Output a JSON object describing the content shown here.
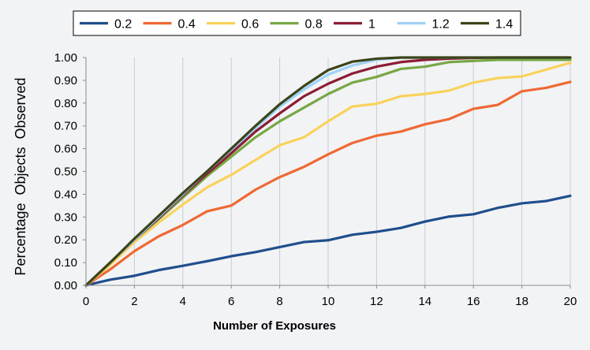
{
  "chart_data": {
    "type": "line",
    "title": "",
    "xlabel": "Number of Exposures",
    "ylabel": "Percentage  Objects  Observed",
    "xlim": [
      0,
      20
    ],
    "ylim": [
      0.0,
      1.0
    ],
    "x_ticks": [
      "0",
      "2",
      "4",
      "6",
      "8",
      "10",
      "12",
      "14",
      "16",
      "18",
      "20"
    ],
    "y_ticks": [
      "0.00",
      "0.10",
      "0.20",
      "0.30",
      "0.40",
      "0.50",
      "0.60",
      "0.70",
      "0.80",
      "0.90",
      "1.00"
    ],
    "grid": "vertical",
    "legend_position": "top",
    "x": [
      0,
      1,
      2,
      3,
      4,
      5,
      6,
      7,
      8,
      9,
      10,
      11,
      12,
      13,
      14,
      15,
      16,
      17,
      18,
      19,
      20
    ],
    "series": [
      {
        "name": "0.2",
        "color": "#1f4e8c",
        "values": [
          0.0,
          0.025,
          0.042,
          0.067,
          0.086,
          0.106,
          0.128,
          0.146,
          0.168,
          0.19,
          0.198,
          0.222,
          0.235,
          0.252,
          0.28,
          0.302,
          0.312,
          0.34,
          0.36,
          0.37,
          0.393
        ]
      },
      {
        "name": "0.4",
        "color": "#ef6934",
        "values": [
          0.0,
          0.07,
          0.15,
          0.215,
          0.265,
          0.325,
          0.35,
          0.42,
          0.475,
          0.52,
          0.575,
          0.625,
          0.657,
          0.675,
          0.707,
          0.73,
          0.775,
          0.792,
          0.852,
          0.867,
          0.893
        ]
      },
      {
        "name": "0.6",
        "color": "#f9d25c",
        "values": [
          0.0,
          0.09,
          0.19,
          0.275,
          0.355,
          0.43,
          0.485,
          0.55,
          0.615,
          0.65,
          0.72,
          0.785,
          0.797,
          0.83,
          0.84,
          0.855,
          0.89,
          0.91,
          0.917,
          0.947,
          0.977
        ]
      },
      {
        "name": "0.8",
        "color": "#77a744",
        "values": [
          0.0,
          0.1,
          0.2,
          0.29,
          0.385,
          0.48,
          0.565,
          0.65,
          0.72,
          0.78,
          0.84,
          0.89,
          0.915,
          0.95,
          0.96,
          0.98,
          0.985,
          0.99,
          0.99,
          0.99,
          0.99
        ]
      },
      {
        "name": "1",
        "color": "#8c1c35",
        "values": [
          0.0,
          0.1,
          0.2,
          0.295,
          0.395,
          0.49,
          0.58,
          0.675,
          0.755,
          0.83,
          0.885,
          0.93,
          0.96,
          0.98,
          0.99,
          0.995,
          0.998,
          1.0,
          1.0,
          1.0,
          1.0
        ]
      },
      {
        "name": "1.2",
        "color": "#9fd2f5",
        "values": [
          0.0,
          0.1,
          0.2,
          0.3,
          0.4,
          0.5,
          0.595,
          0.69,
          0.785,
          0.86,
          0.925,
          0.965,
          0.99,
          1.0,
          1.0,
          1.0,
          1.0,
          1.0,
          1.0,
          1.0,
          1.0
        ]
      },
      {
        "name": "1.4",
        "color": "#3b4419",
        "values": [
          0.0,
          0.1,
          0.205,
          0.305,
          0.405,
          0.5,
          0.6,
          0.7,
          0.795,
          0.875,
          0.945,
          0.982,
          0.995,
          1.0,
          1.0,
          1.0,
          1.0,
          1.0,
          1.0,
          1.0,
          1.0
        ]
      }
    ]
  }
}
